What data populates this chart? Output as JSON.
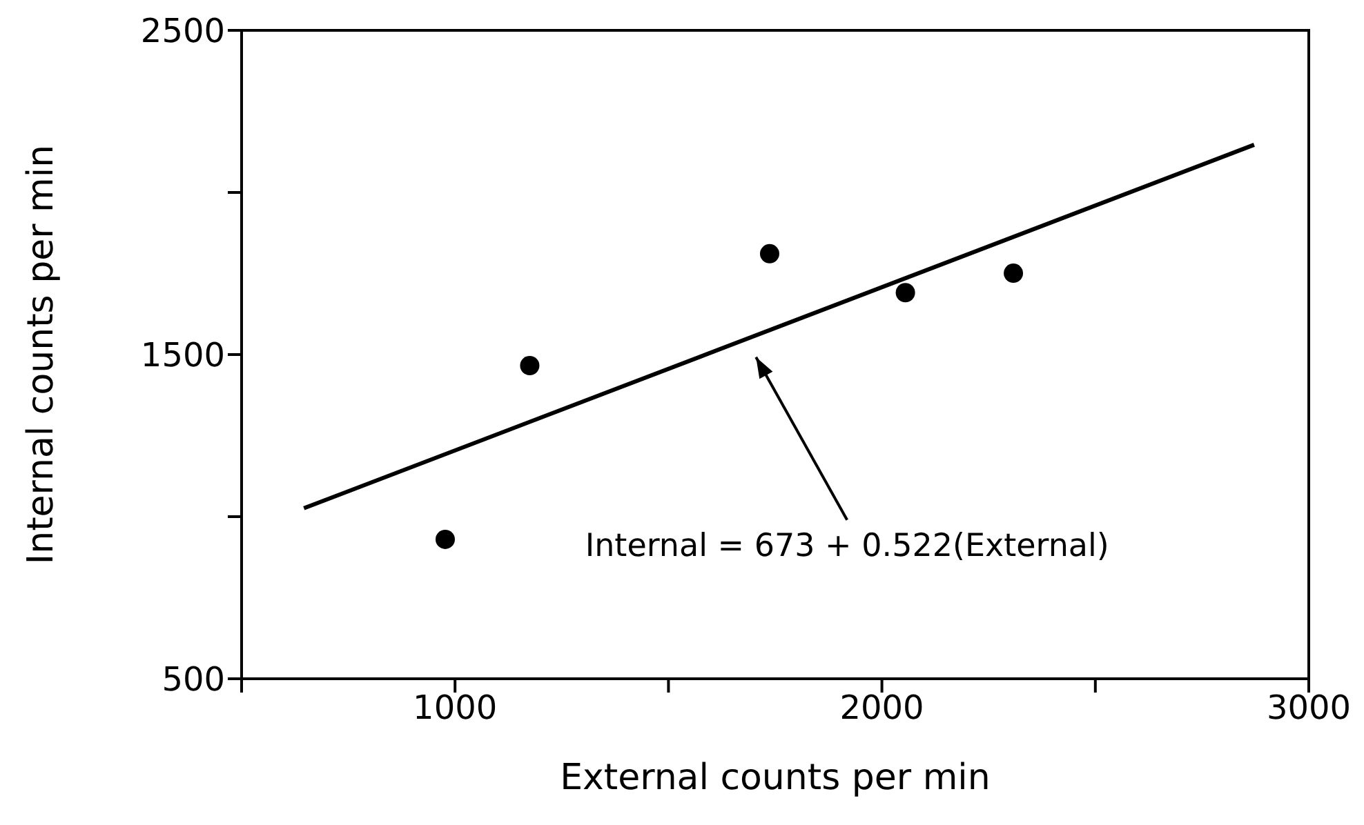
{
  "chart_data": {
    "type": "scatter",
    "xlabel": "External counts per min",
    "ylabel": "Internal counts per min",
    "xlim": [
      500,
      3000
    ],
    "xticks": [
      {
        "value": 500,
        "label": null
      },
      1000,
      {
        "value": 1500,
        "label": null
      },
      2000,
      {
        "value": 2500,
        "label": null
      },
      3000
    ],
    "ylim": [
      500,
      2500
    ],
    "yticks": [
      500,
      {
        "value": 1000,
        "label": null
      },
      1500,
      {
        "value": 2000,
        "label": null
      },
      2500
    ],
    "marker": "circle",
    "series": [
      {
        "color": "#000000",
        "x": [
          977,
          1175,
          1737,
          2055,
          2308
        ],
        "values": [
          930,
          1466,
          1811,
          1691,
          1751
        ]
      },
      {
        "type": "line",
        "color": "#000000",
        "marker": "none",
        "line_style": "solid",
        "x": [
          646,
          2872
        ],
        "values": [
          1026,
          2147
        ]
      }
    ],
    "annotations": [
      "Internal = 673 + 0.522(External)"
    ]
  }
}
